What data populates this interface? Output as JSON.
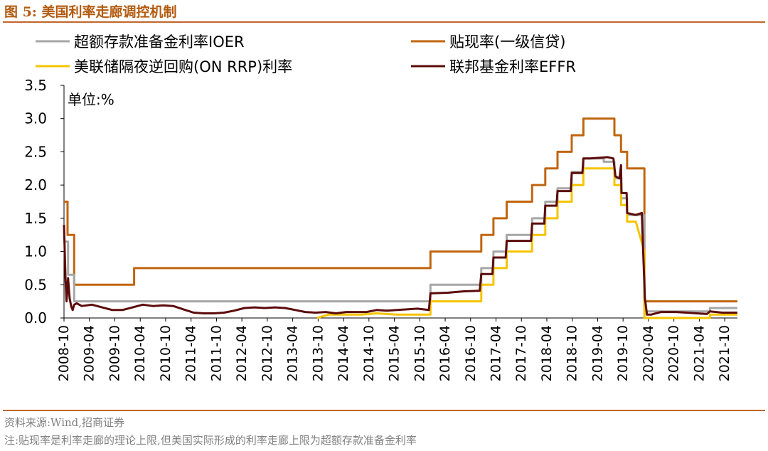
{
  "figure": {
    "title": "图 5:  美国利率走廊调控机制",
    "source": "资料来源:Wind,招商证券",
    "note": "注:贴现率是利率走廊的理论上限,但美国实际形成的利率走廊上限为超额存款准备金利率"
  },
  "colors": {
    "ioer": "#a6a6a6",
    "discount": "#c0650f",
    "onrrp": "#f5c400",
    "effr": "#5c0b0b",
    "accent": "#c0652a"
  },
  "chart_data": {
    "type": "line",
    "title": "美国利率走廊调控机制",
    "unit_label": "单位:%",
    "ylim": [
      0,
      3.5
    ],
    "yticks": [
      "0.0",
      "0.5",
      "1.0",
      "1.5",
      "2.0",
      "2.5",
      "3.0",
      "3.5"
    ],
    "xlim": [
      2008.75,
      2022.0
    ],
    "xticks": [
      "2008-10",
      "2009-04",
      "2009-10",
      "2010-04",
      "2010-10",
      "2011-04",
      "2011-10",
      "2012-04",
      "2012-10",
      "2013-04",
      "2013-10",
      "2014-04",
      "2014-10",
      "2015-04",
      "2015-10",
      "2016-04",
      "2016-10",
      "2017-04",
      "2017-10",
      "2018-04",
      "2018-10",
      "2019-04",
      "2019-10",
      "2020-04",
      "2020-10",
      "2021-04",
      "2021-10"
    ],
    "legend": [
      {
        "key": "ioer",
        "label": "超额存款准备金利率IOER"
      },
      {
        "key": "discount",
        "label": "贴现率(一级信贷)"
      },
      {
        "key": "onrrp",
        "label": "美联储隔夜逆回购(ON RRP)利率"
      },
      {
        "key": "effr",
        "label": "联邦基金利率EFFR"
      }
    ],
    "series": [
      {
        "key": "discount",
        "name": "贴现率(一级信贷)",
        "x": [
          2008.75,
          2008.82,
          2008.82,
          2008.95,
          2008.95,
          2010.13,
          2010.13,
          2015.96,
          2015.96,
          2016.96,
          2016.96,
          2017.2,
          2017.2,
          2017.46,
          2017.46,
          2017.96,
          2017.96,
          2018.22,
          2018.22,
          2018.46,
          2018.46,
          2018.74,
          2018.74,
          2018.97,
          2018.97,
          2019.58,
          2019.58,
          2019.71,
          2019.71,
          2019.83,
          2019.83,
          2020.17,
          2020.17,
          2022.0
        ],
        "values": [
          1.75,
          1.75,
          1.25,
          1.25,
          0.5,
          0.5,
          0.75,
          0.75,
          1.0,
          1.0,
          1.25,
          1.25,
          1.5,
          1.5,
          1.75,
          1.75,
          2.0,
          2.0,
          2.25,
          2.25,
          2.5,
          2.5,
          2.75,
          2.75,
          3.0,
          3.0,
          2.75,
          2.75,
          2.5,
          2.5,
          2.25,
          2.25,
          0.25,
          0.25
        ]
      },
      {
        "key": "ioer",
        "name": "超额存款准备金利率IOER",
        "x": [
          2008.75,
          2008.83,
          2008.83,
          2008.95,
          2008.95,
          2015.96,
          2015.96,
          2016.96,
          2016.96,
          2017.2,
          2017.2,
          2017.46,
          2017.46,
          2017.96,
          2017.96,
          2018.22,
          2018.22,
          2018.46,
          2018.46,
          2018.74,
          2018.74,
          2018.97,
          2018.97,
          2019.37,
          2019.37,
          2019.58,
          2019.58,
          2019.71,
          2019.71,
          2019.83,
          2019.83,
          2020.17,
          2020.17,
          2021.46,
          2021.46,
          2022.0
        ],
        "values": [
          1.15,
          1.15,
          0.65,
          0.65,
          0.25,
          0.25,
          0.5,
          0.5,
          0.75,
          0.75,
          1.0,
          1.0,
          1.25,
          1.25,
          1.5,
          1.5,
          1.75,
          1.75,
          1.95,
          1.95,
          2.2,
          2.2,
          2.4,
          2.4,
          2.35,
          2.35,
          2.1,
          2.1,
          1.8,
          1.8,
          1.55,
          1.55,
          0.1,
          0.1,
          0.15,
          0.15
        ]
      },
      {
        "key": "onrrp",
        "name": "美联储隔夜逆回购(ON RRP)利率",
        "x": [
          2013.73,
          2013.95,
          2014.2,
          2014.6,
          2014.9,
          2015.3,
          2015.7,
          2015.96,
          2015.96,
          2016.96,
          2016.96,
          2017.2,
          2017.2,
          2017.46,
          2017.46,
          2017.96,
          2017.96,
          2018.22,
          2018.22,
          2018.46,
          2018.46,
          2018.74,
          2018.74,
          2018.97,
          2018.97,
          2019.37,
          2019.37,
          2019.58,
          2019.58,
          2019.71,
          2019.71,
          2019.83,
          2019.83,
          2020.0,
          2020.17,
          2020.17,
          2021.46,
          2021.46,
          2022.0
        ],
        "values": [
          0.0,
          0.05,
          0.05,
          0.05,
          0.07,
          0.05,
          0.05,
          0.05,
          0.25,
          0.25,
          0.5,
          0.5,
          0.75,
          0.75,
          1.0,
          1.0,
          1.25,
          1.25,
          1.5,
          1.5,
          1.75,
          1.75,
          2.0,
          2.0,
          2.25,
          2.25,
          2.25,
          2.25,
          2.0,
          2.0,
          1.7,
          1.7,
          1.45,
          1.45,
          1.0,
          0.0,
          0.0,
          0.05,
          0.05
        ]
      },
      {
        "key": "effr",
        "name": "联邦基金利率EFFR",
        "x": [
          2008.75,
          2008.78,
          2008.8,
          2008.83,
          2008.86,
          2008.89,
          2008.92,
          2008.95,
          2009.0,
          2009.1,
          2009.3,
          2009.5,
          2009.7,
          2009.9,
          2010.1,
          2010.3,
          2010.5,
          2010.7,
          2010.9,
          2011.1,
          2011.3,
          2011.5,
          2011.7,
          2011.9,
          2012.1,
          2012.3,
          2012.5,
          2012.7,
          2012.9,
          2013.1,
          2013.3,
          2013.5,
          2013.7,
          2013.9,
          2014.1,
          2014.3,
          2014.5,
          2014.7,
          2014.9,
          2015.1,
          2015.3,
          2015.5,
          2015.7,
          2015.93,
          2015.96,
          2016.3,
          2016.6,
          2016.93,
          2016.96,
          2017.18,
          2017.2,
          2017.44,
          2017.46,
          2017.94,
          2017.96,
          2018.2,
          2018.22,
          2018.44,
          2018.46,
          2018.72,
          2018.74,
          2018.95,
          2018.97,
          2019.1,
          2019.3,
          2019.45,
          2019.56,
          2019.6,
          2019.68,
          2019.71,
          2019.72,
          2019.82,
          2019.83,
          2020.0,
          2020.12,
          2020.14,
          2020.18,
          2020.22,
          2020.3,
          2020.5,
          2020.8,
          2021.0,
          2021.2,
          2021.4,
          2021.46,
          2021.7,
          2022.0
        ],
        "values": [
          1.4,
          0.6,
          0.25,
          0.6,
          0.3,
          0.18,
          0.12,
          0.2,
          0.22,
          0.18,
          0.2,
          0.16,
          0.12,
          0.12,
          0.16,
          0.2,
          0.18,
          0.19,
          0.18,
          0.13,
          0.08,
          0.07,
          0.07,
          0.08,
          0.11,
          0.15,
          0.16,
          0.15,
          0.16,
          0.15,
          0.12,
          0.09,
          0.08,
          0.09,
          0.07,
          0.09,
          0.09,
          0.09,
          0.12,
          0.11,
          0.12,
          0.13,
          0.14,
          0.12,
          0.37,
          0.38,
          0.4,
          0.41,
          0.66,
          0.66,
          0.91,
          0.91,
          1.16,
          1.16,
          1.42,
          1.42,
          1.69,
          1.69,
          1.91,
          1.91,
          2.18,
          2.18,
          2.4,
          2.4,
          2.41,
          2.42,
          2.4,
          2.13,
          2.1,
          2.3,
          1.88,
          1.88,
          1.58,
          1.55,
          1.58,
          1.1,
          0.3,
          0.05,
          0.05,
          0.09,
          0.09,
          0.08,
          0.07,
          0.06,
          0.1,
          0.08,
          0.08
        ]
      }
    ]
  }
}
